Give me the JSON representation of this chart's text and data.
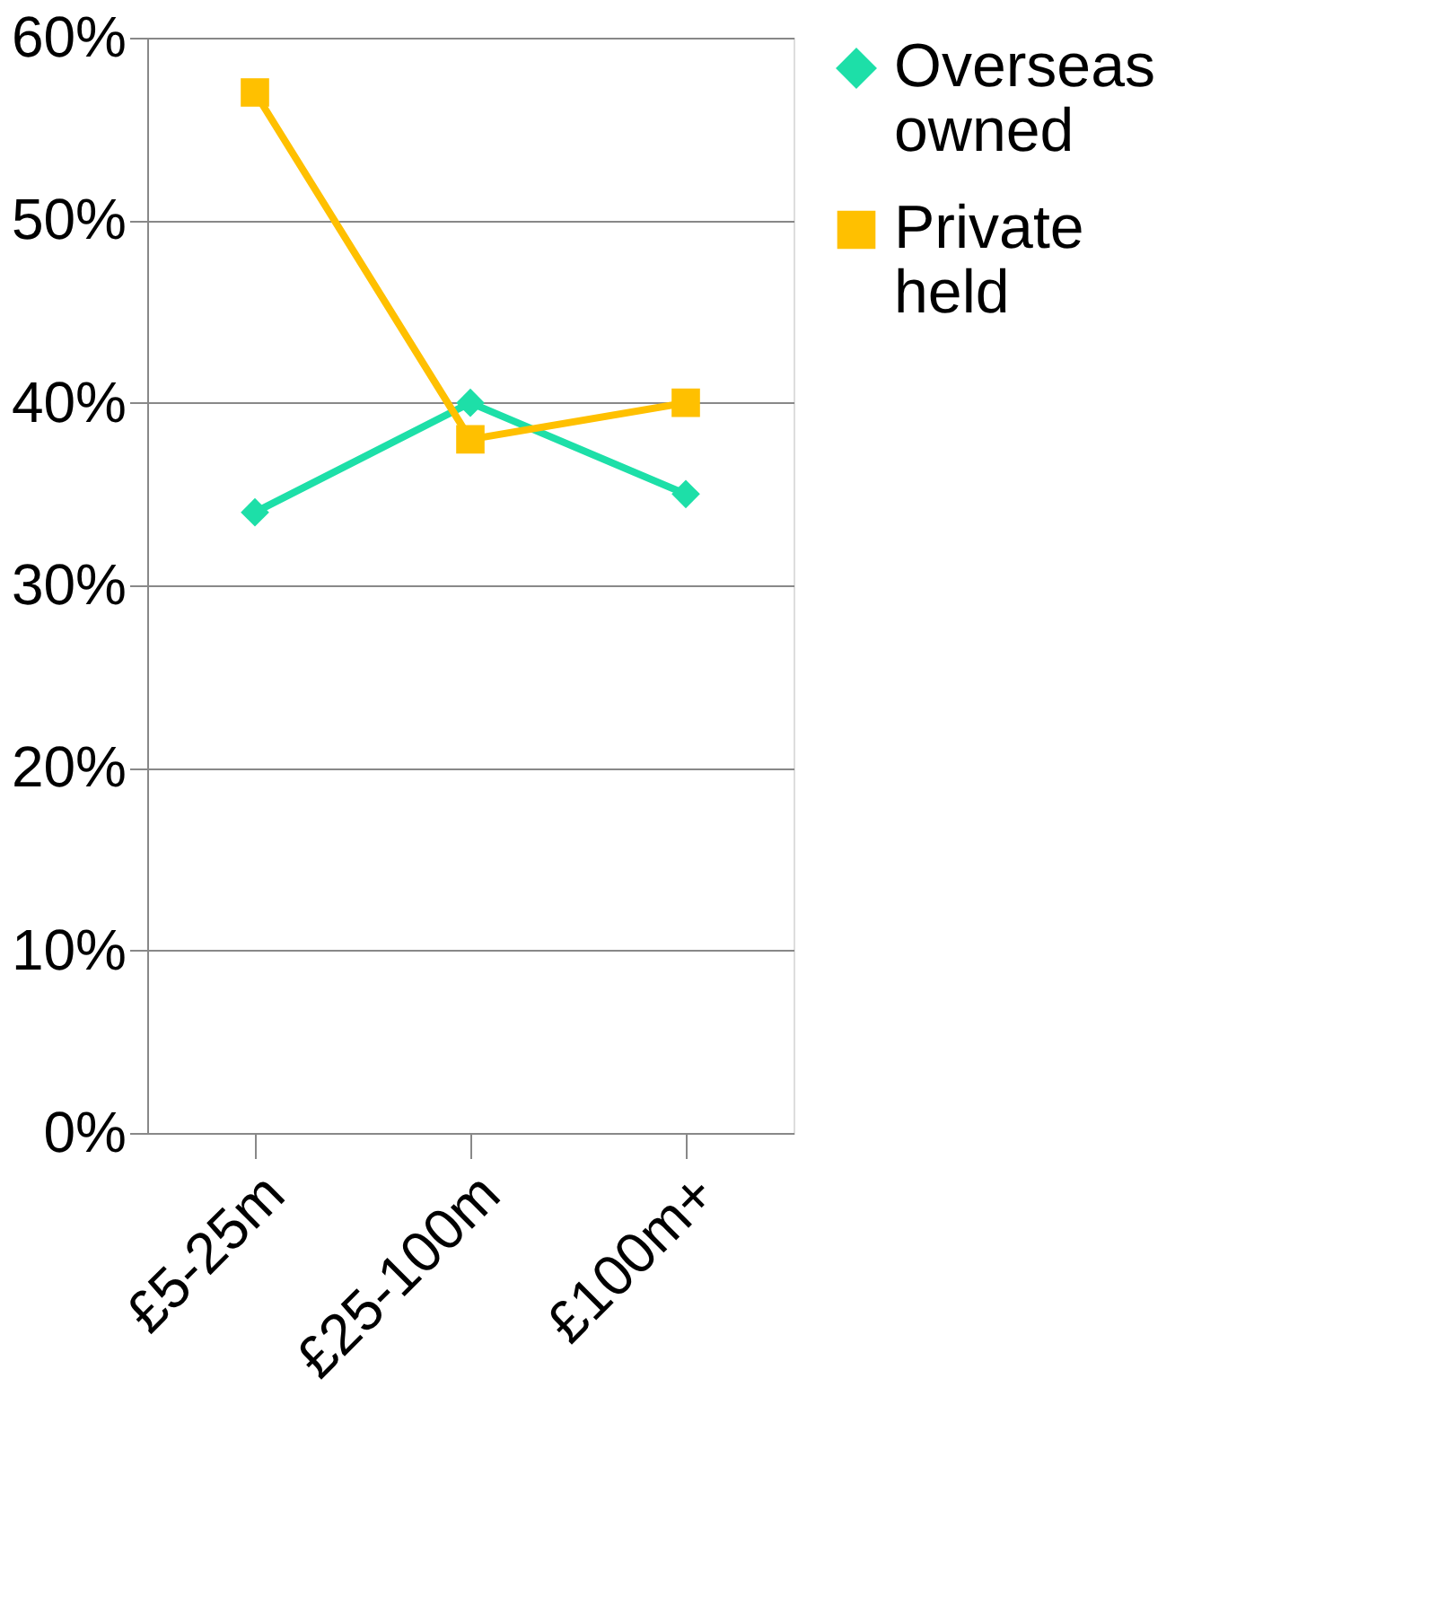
{
  "chart_data": {
    "type": "line",
    "categories": [
      "£5-25m",
      "£25-100m",
      "£100m+"
    ],
    "series": [
      {
        "name": "Overseas owned",
        "color": "#1ddfa8",
        "values": [
          34,
          40,
          35
        ],
        "marker": "diamond"
      },
      {
        "name": "Private held",
        "color": "#ffc000",
        "values": [
          57,
          38,
          40
        ],
        "marker": "square"
      }
    ],
    "ylim": [
      0,
      60
    ],
    "yticks": [
      {
        "value": 0,
        "label": "0%"
      },
      {
        "value": 10,
        "label": "10%"
      },
      {
        "value": 20,
        "label": "20%"
      },
      {
        "value": 30,
        "label": "30%"
      },
      {
        "value": 40,
        "label": "40%"
      },
      {
        "value": 50,
        "label": "50%"
      },
      {
        "value": 60,
        "label": "60%"
      }
    ],
    "grid": "y",
    "legend": "right",
    "line_style": "solid"
  }
}
